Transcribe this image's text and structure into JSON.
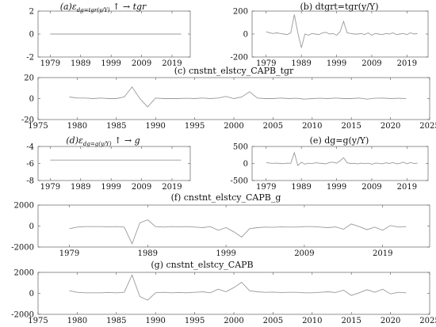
{
  "chart_data": [
    {
      "id": "a",
      "type": "line",
      "title": "(a)ε_{dg=tgr(y/Y)} ↑ →  tgr",
      "x": [
        1979,
        1980,
        1981,
        1982,
        1983,
        1984,
        1985,
        1986,
        1987,
        1988,
        1989,
        1990,
        1991,
        1992,
        1993,
        1994,
        1995,
        1996,
        1997,
        1998,
        1999,
        2000,
        2001,
        2002,
        2003,
        2004,
        2005,
        2006,
        2007,
        2008,
        2009,
        2010,
        2011,
        2012,
        2013,
        2014,
        2015,
        2016,
        2017,
        2018,
        2019,
        2020,
        2021,
        2022
      ],
      "y": [
        0,
        0,
        0,
        0,
        0,
        0,
        0,
        0,
        0,
        0,
        0,
        0,
        0,
        0,
        0,
        0,
        0,
        0,
        0,
        0,
        0,
        0,
        0,
        0,
        0,
        0,
        0,
        0,
        0,
        0,
        0,
        0,
        0,
        0,
        0,
        0,
        0,
        0,
        0,
        0,
        0,
        0,
        0,
        0
      ],
      "xticks": [
        1979,
        1989,
        1999,
        2009,
        2019
      ],
      "xlim": [
        1975,
        2025
      ],
      "yticks": [
        2,
        0,
        -2
      ],
      "ylim": [
        -2,
        2
      ],
      "grid": false
    },
    {
      "id": "b",
      "type": "line",
      "title": "(b) dtgrt=tgr(y/Y)",
      "x": [
        1979,
        1980,
        1981,
        1982,
        1983,
        1984,
        1985,
        1986,
        1987,
        1988,
        1989,
        1990,
        1991,
        1992,
        1993,
        1994,
        1995,
        1996,
        1997,
        1998,
        1999,
        2000,
        2001,
        2002,
        2003,
        2004,
        2005,
        2006,
        2007,
        2008,
        2009,
        2010,
        2011,
        2012,
        2013,
        2014,
        2015,
        2016,
        2017,
        2018,
        2019,
        2020,
        2021,
        2022
      ],
      "y": [
        20,
        10,
        5,
        10,
        5,
        0,
        -5,
        10,
        170,
        10,
        -120,
        0,
        -10,
        5,
        0,
        -5,
        10,
        15,
        0,
        5,
        -10,
        20,
        110,
        10,
        5,
        0,
        0,
        5,
        -5,
        10,
        -10,
        5,
        0,
        -5,
        5,
        0,
        10,
        -5,
        0,
        5,
        -5,
        10,
        0,
        5
      ],
      "xticks": [
        1979,
        1989,
        1999,
        2009,
        2019
      ],
      "xlim": [
        1975,
        2025
      ],
      "yticks": [
        200,
        0,
        -200
      ],
      "ylim": [
        -200,
        200
      ],
      "grid": false
    },
    {
      "id": "c",
      "type": "line",
      "title": "(c) cnstnt_elstcy_CAPB_tgr",
      "x": [
        1979,
        1980,
        1981,
        1982,
        1983,
        1984,
        1985,
        1986,
        1987,
        1988,
        1989,
        1990,
        1991,
        1992,
        1993,
        1994,
        1995,
        1996,
        1997,
        1998,
        1999,
        2000,
        2001,
        2002,
        2003,
        2004,
        2005,
        2006,
        2007,
        2008,
        2009,
        2010,
        2011,
        2012,
        2013,
        2014,
        2015,
        2016,
        2017,
        2018,
        2019,
        2020,
        2021,
        2022
      ],
      "y": [
        1.5,
        0.5,
        0.5,
        0,
        0.5,
        0,
        0,
        1.5,
        11,
        0,
        -8,
        0.5,
        0,
        0,
        0,
        0.3,
        0,
        0.5,
        0,
        0.5,
        2,
        0,
        1.5,
        6.5,
        0.5,
        0,
        0,
        0.5,
        0,
        0.3,
        -0.5,
        0,
        0.3,
        0,
        0.5,
        0,
        0,
        0.5,
        -0.5,
        0.3,
        0.5,
        0,
        0.3,
        0
      ],
      "xticks": [
        1975,
        1980,
        1985,
        1990,
        1995,
        2000,
        2005,
        2010,
        2015,
        2020,
        2025
      ],
      "xlim": [
        1975,
        2025
      ],
      "yticks": [
        20,
        0,
        -20
      ],
      "ylim": [
        -20,
        20
      ],
      "grid": false
    },
    {
      "id": "d",
      "type": "line",
      "title": "(d)ε_{dg=g(y/Y)} ↑ →  g",
      "x": [
        1979,
        1980,
        1981,
        1982,
        1983,
        1984,
        1985,
        1986,
        1987,
        1988,
        1989,
        1990,
        1991,
        1992,
        1993,
        1994,
        1995,
        1996,
        1997,
        1998,
        1999,
        2000,
        2001,
        2002,
        2003,
        2004,
        2005,
        2006,
        2007,
        2008,
        2009,
        2010,
        2011,
        2012,
        2013,
        2014,
        2015,
        2016,
        2017,
        2018,
        2019,
        2020,
        2021,
        2022
      ],
      "y": [
        -5.6,
        -5.6,
        -5.6,
        -5.6,
        -5.6,
        -5.6,
        -5.6,
        -5.6,
        -5.6,
        -5.6,
        -5.6,
        -5.6,
        -5.6,
        -5.6,
        -5.6,
        -5.6,
        -5.6,
        -5.6,
        -5.6,
        -5.6,
        -5.6,
        -5.6,
        -5.6,
        -5.6,
        -5.6,
        -5.6,
        -5.6,
        -5.6,
        -5.6,
        -5.6,
        -5.6,
        -5.6,
        -5.6,
        -5.6,
        -5.6,
        -5.6,
        -5.6,
        -5.6,
        -5.6,
        -5.6,
        -5.6,
        -5.6,
        -5.6,
        -5.6
      ],
      "xticks": [
        1979,
        1989,
        1999,
        2009,
        2019
      ],
      "xlim": [
        1975,
        2025
      ],
      "yticks": [
        -4,
        -6,
        -8
      ],
      "ylim": [
        -8,
        -4
      ],
      "grid": false
    },
    {
      "id": "e",
      "type": "line",
      "title": "(e) dg=g(y/Y)",
      "x": [
        1979,
        1980,
        1981,
        1982,
        1983,
        1984,
        1985,
        1986,
        1987,
        1988,
        1989,
        1990,
        1991,
        1992,
        1993,
        1994,
        1995,
        1996,
        1997,
        1998,
        1999,
        2000,
        2001,
        2002,
        2003,
        2004,
        2005,
        2006,
        2007,
        2008,
        2009,
        2010,
        2011,
        2012,
        2013,
        2014,
        2015,
        2016,
        2017,
        2018,
        2019,
        2020,
        2021,
        2022
      ],
      "y": [
        30,
        10,
        5,
        10,
        0,
        -5,
        10,
        5,
        320,
        -60,
        40,
        -20,
        10,
        -5,
        20,
        10,
        0,
        -10,
        30,
        40,
        10,
        80,
        170,
        20,
        0,
        5,
        -10,
        10,
        -5,
        10,
        -20,
        10,
        5,
        -10,
        20,
        0,
        30,
        -10,
        5,
        40,
        -10,
        30,
        0,
        10
      ],
      "xticks": [
        1979,
        1989,
        1999,
        2009,
        2019
      ],
      "xlim": [
        1975,
        2025
      ],
      "yticks": [
        500,
        0,
        -500
      ],
      "ylim": [
        -500,
        500
      ],
      "grid": false
    },
    {
      "id": "f",
      "type": "line",
      "title": "(f) cnstnt_elstcy_CAPB_g",
      "x": [
        1979,
        1980,
        1981,
        1982,
        1983,
        1984,
        1985,
        1986,
        1987,
        1988,
        1989,
        1990,
        1991,
        1992,
        1993,
        1994,
        1995,
        1996,
        1997,
        1998,
        1999,
        2000,
        2001,
        2002,
        2003,
        2004,
        2005,
        2006,
        2007,
        2008,
        2009,
        2010,
        2011,
        2012,
        2013,
        2014,
        2015,
        2016,
        2017,
        2018,
        2019,
        2020,
        2021,
        2022
      ],
      "y": [
        -250,
        -100,
        -50,
        -50,
        -50,
        -80,
        -50,
        -100,
        -1700,
        300,
        600,
        -50,
        -100,
        -50,
        -80,
        -50,
        -100,
        -150,
        -50,
        -400,
        -150,
        -550,
        -1050,
        -250,
        -150,
        -100,
        -120,
        -80,
        -100,
        -100,
        -50,
        -50,
        -100,
        -150,
        -80,
        -300,
        200,
        -50,
        -350,
        -100,
        -400,
        50,
        -100,
        -50
      ],
      "xticks": [
        1979,
        1989,
        1999,
        2009,
        2019
      ],
      "xlim": [
        1975,
        2025
      ],
      "yticks": [
        2000,
        0,
        -2000
      ],
      "ylim": [
        -2000,
        2000
      ],
      "grid": false
    },
    {
      "id": "g",
      "type": "line",
      "title": "(g) cnstnt_elstcy_CAPB",
      "x": [
        1979,
        1980,
        1981,
        1982,
        1983,
        1984,
        1985,
        1986,
        1987,
        1988,
        1989,
        1990,
        1991,
        1992,
        1993,
        1994,
        1995,
        1996,
        1997,
        1998,
        1999,
        2000,
        2001,
        2002,
        2003,
        2004,
        2005,
        2006,
        2007,
        2008,
        2009,
        2010,
        2011,
        2012,
        2013,
        2014,
        2015,
        2016,
        2017,
        2018,
        2019,
        2020,
        2021,
        2022
      ],
      "y": [
        250,
        100,
        50,
        50,
        50,
        80,
        50,
        100,
        1750,
        -300,
        -650,
        50,
        100,
        50,
        80,
        50,
        100,
        150,
        50,
        400,
        150,
        550,
        1050,
        250,
        150,
        100,
        120,
        80,
        100,
        100,
        50,
        50,
        100,
        150,
        80,
        300,
        -200,
        50,
        350,
        100,
        400,
        -50,
        100,
        50
      ],
      "xticks": [
        1975,
        1980,
        1985,
        1990,
        1995,
        2000,
        2005,
        2010,
        2015,
        2020,
        2025
      ],
      "xlim": [
        1975,
        2025
      ],
      "yticks": [
        2000,
        0,
        -2000
      ],
      "ylim": [
        -2000,
        2000
      ],
      "grid": false
    }
  ]
}
